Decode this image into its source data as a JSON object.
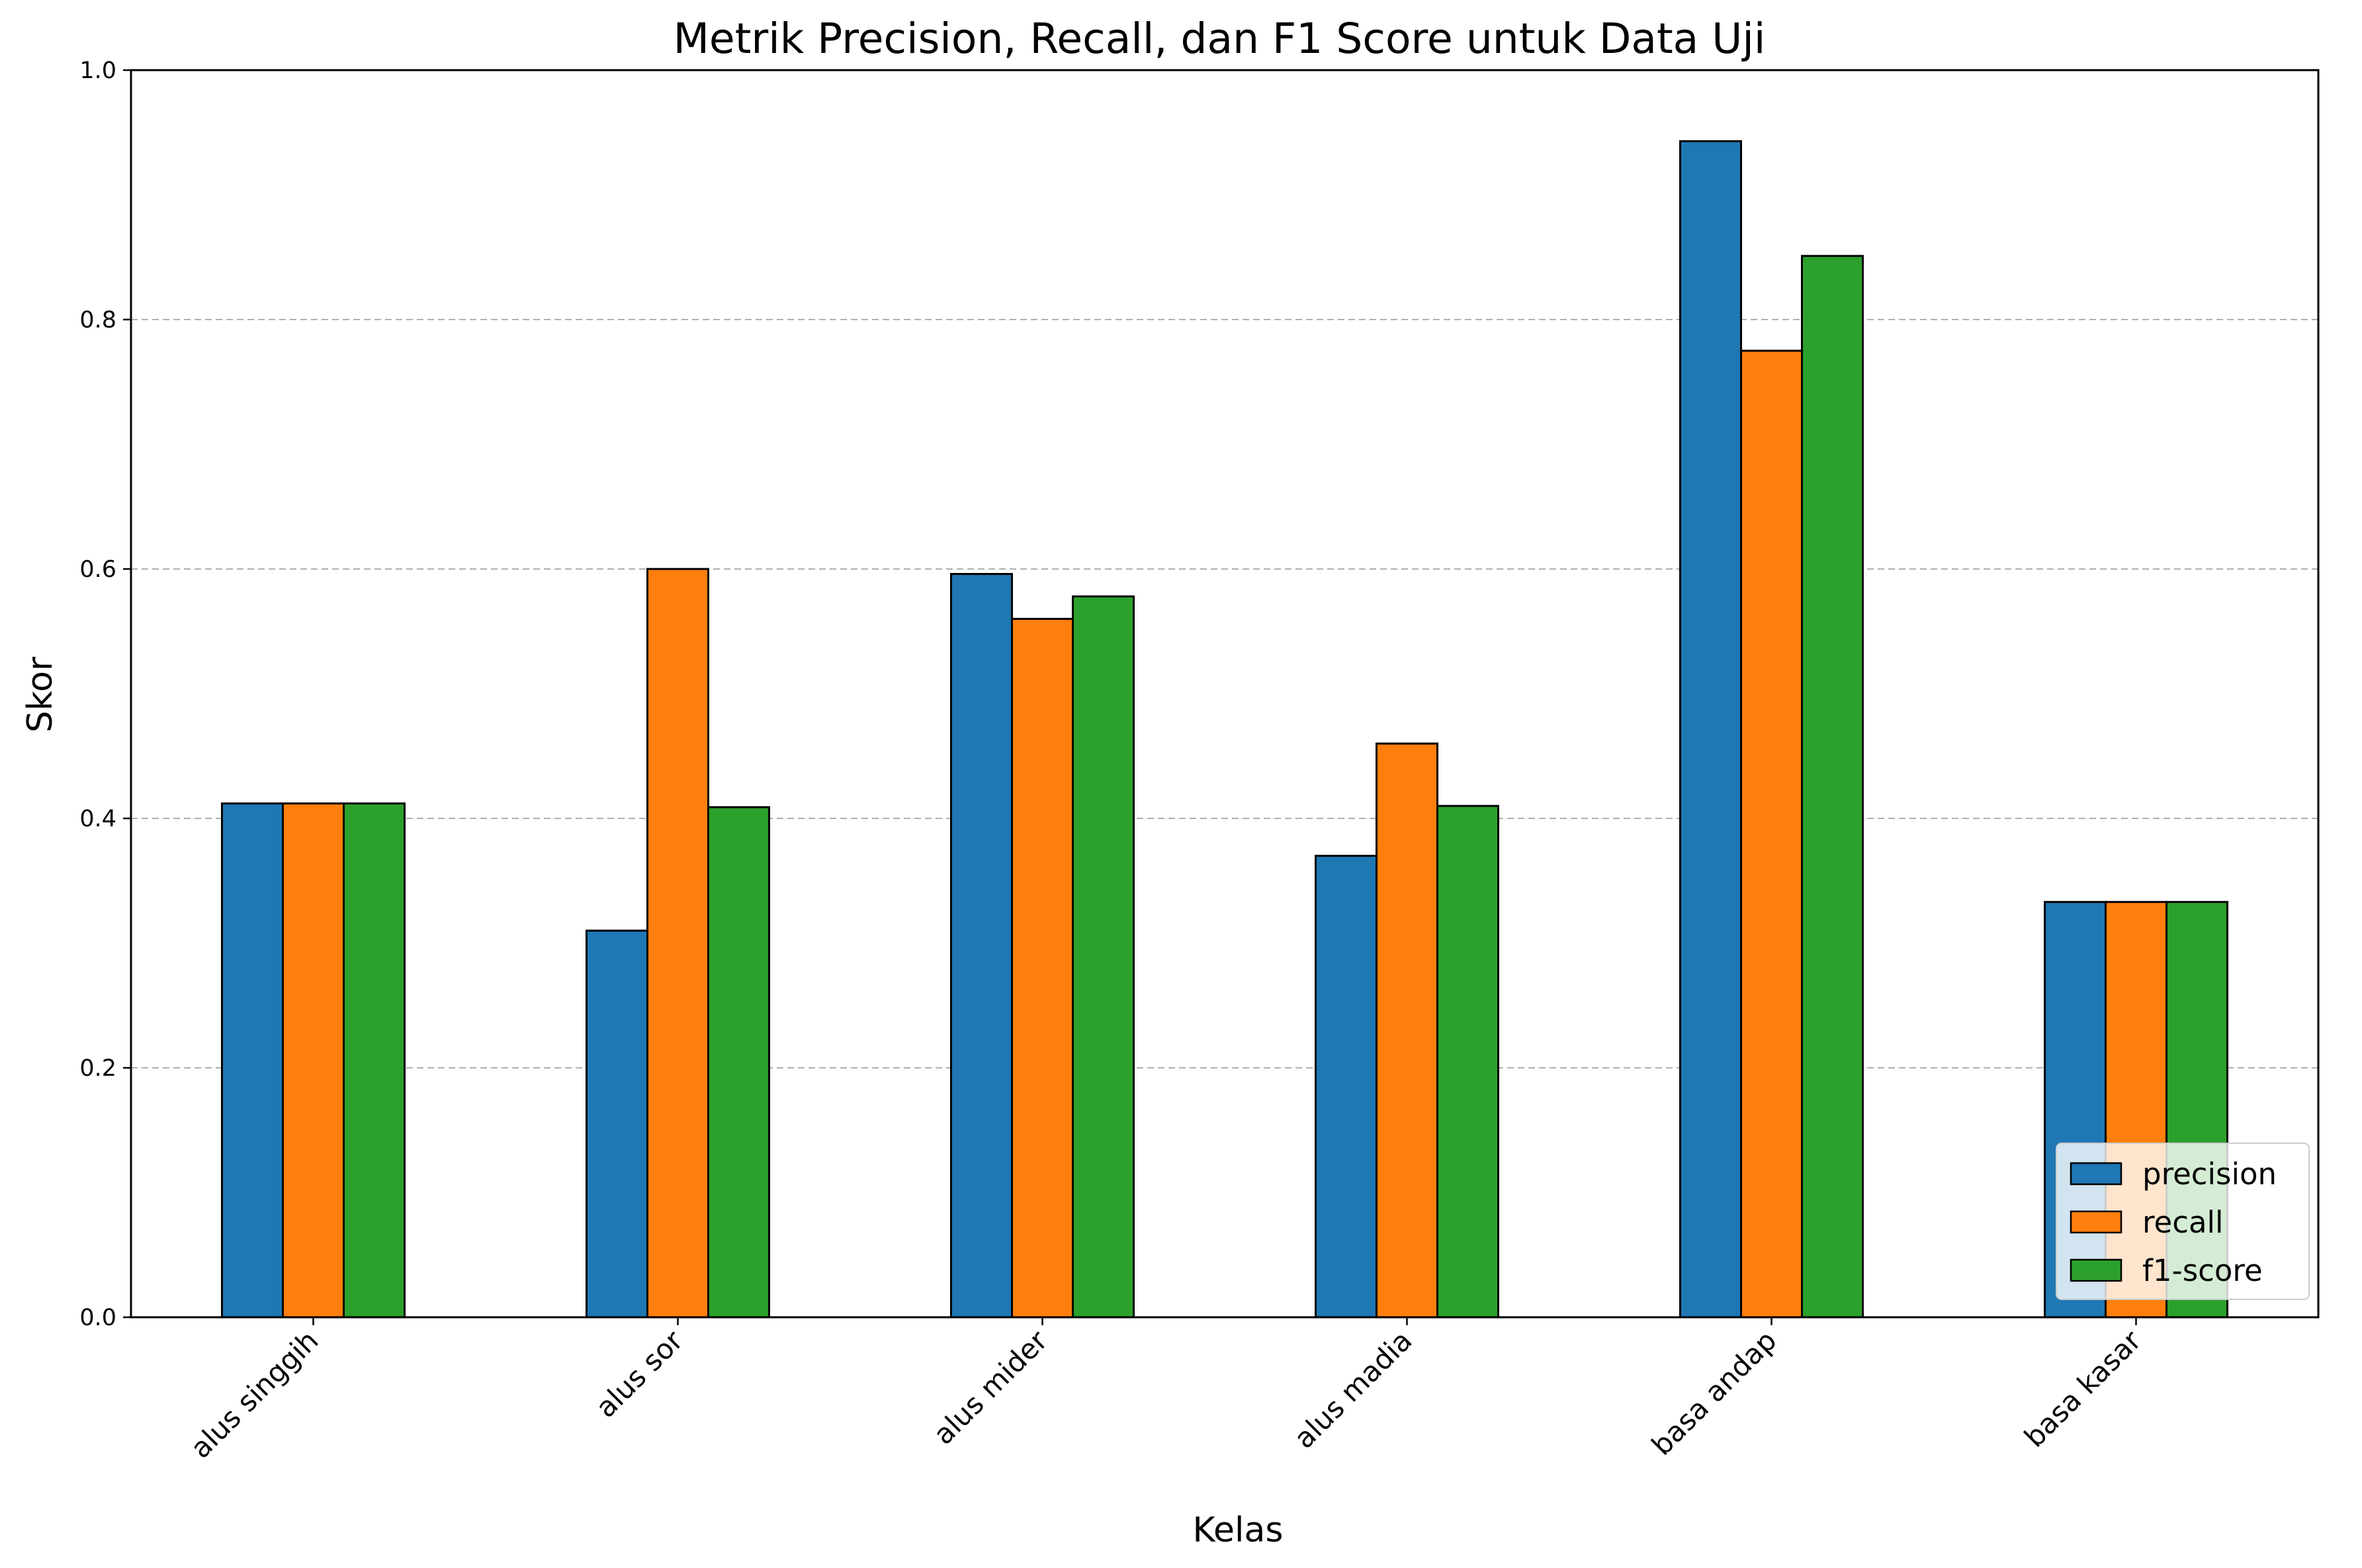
{
  "chart_data": {
    "type": "bar",
    "title": "Metrik Precision, Recall, dan F1 Score untuk Data Uji",
    "xlabel": "Kelas",
    "ylabel": "Skor",
    "ylim": [
      0,
      1.0
    ],
    "yticks": [
      "0.0",
      "0.2",
      "0.4",
      "0.6",
      "0.8",
      "1.0"
    ],
    "grid": "y-dashed",
    "legend_position": "bottom-right",
    "categories": [
      "alus singgih",
      "alus sor",
      "alus mider",
      "alus madia",
      "basa andap",
      "basa kasar"
    ],
    "series": [
      {
        "name": "precision",
        "color": "#1f77b4",
        "values": [
          0.412,
          0.31,
          0.596,
          0.37,
          0.943,
          0.333
        ]
      },
      {
        "name": "recall",
        "color": "#ff7f0e",
        "values": [
          0.412,
          0.6,
          0.56,
          0.46,
          0.775,
          0.333
        ]
      },
      {
        "name": "f1-score",
        "color": "#2ca02c",
        "values": [
          0.412,
          0.409,
          0.578,
          0.41,
          0.851,
          0.333
        ]
      }
    ]
  }
}
